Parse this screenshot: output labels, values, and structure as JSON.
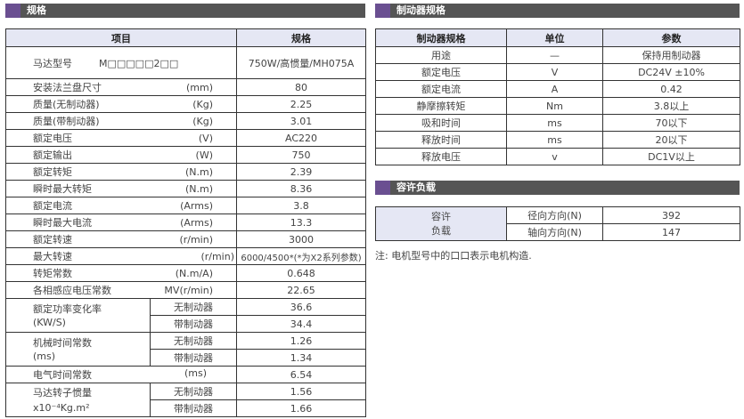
{
  "spec": {
    "title": "规格",
    "headers": [
      "项目",
      "规格"
    ],
    "model": {
      "label": "马达型号",
      "code": "M□□□□□2□□",
      "value": "750W/高惯量/MH075A"
    },
    "rows": [
      {
        "label": "安装法兰盘尺寸",
        "unit": "(mm)",
        "value": "80"
      },
      {
        "label": "质量(无制动器)",
        "unit": "(Kg)",
        "value": "2.25"
      },
      {
        "label": "质量(带制动器)",
        "unit": "(Kg)",
        "value": "3.01"
      },
      {
        "label": "额定电压",
        "unit": "(V)",
        "value": "AC220"
      },
      {
        "label": "额定输出",
        "unit": "(W)",
        "value": "750"
      },
      {
        "label": "额定转矩",
        "unit": "(N.m)",
        "value": "2.39"
      },
      {
        "label": "瞬时最大转矩",
        "unit": "(N.m)",
        "value": "8.36"
      },
      {
        "label": "额定电流",
        "unit": "(Arms)",
        "value": "3.8"
      },
      {
        "label": "瞬时最大电流",
        "unit": "(Arms)",
        "value": "13.3"
      },
      {
        "label": "额定转速",
        "unit": "(r/min)",
        "value": "3000"
      },
      {
        "label": "最大转速",
        "unit": "(r/min)",
        "value": "6000/4500*(*为X2系列参数)"
      },
      {
        "label": "转矩常数",
        "unit": "(N.m/A)",
        "value": "0.648"
      },
      {
        "label": "各相感应电压常数",
        "unit": "MV(r/min)",
        "value": "22.65"
      }
    ],
    "power_rate": {
      "label1": "额定功率变化率",
      "label2": "(KW/S)",
      "sub": [
        "无制动器",
        "带制动器"
      ],
      "values": [
        "36.6",
        "34.4"
      ]
    },
    "mech_time": {
      "label1": "机械时间常数",
      "label2": "(ms)",
      "sub": [
        "无制动器",
        "带制动器"
      ],
      "values": [
        "1.26",
        "1.34"
      ]
    },
    "elec_time": {
      "label": "电气时间常数",
      "unit": "(ms)",
      "value": "6.54"
    },
    "inertia": {
      "label1": "马达转子惯量",
      "label2": "x10⁻⁴Kg.m²",
      "sub": [
        "无制动器",
        "带制动器"
      ],
      "values": [
        "1.56",
        "1.66"
      ]
    }
  },
  "brake": {
    "title": "制动器规格",
    "headers": [
      "制动器规格",
      "单位",
      "参数"
    ],
    "rows": [
      [
        "用途",
        "—",
        "保持用制动器"
      ],
      [
        "额定电压",
        "V",
        "DC24V ±10%"
      ],
      [
        "额定电流",
        "A",
        "0.42"
      ],
      [
        "静摩擦转矩",
        "Nm",
        "3.8以上"
      ],
      [
        "吸和时间",
        "ms",
        "70以下"
      ],
      [
        "释放时间",
        "ms",
        "20以下"
      ],
      [
        "释放电压",
        "v",
        "DC1V以上"
      ]
    ]
  },
  "load": {
    "title": "容许负载",
    "label1": "容许",
    "label2": "负载",
    "rows": [
      {
        "dir": "径向方向(N)",
        "value": "392"
      },
      {
        "dir": "轴向方向(N)",
        "value": "147"
      }
    ]
  },
  "note": "注: 电机型号中的口口表示电机构造."
}
